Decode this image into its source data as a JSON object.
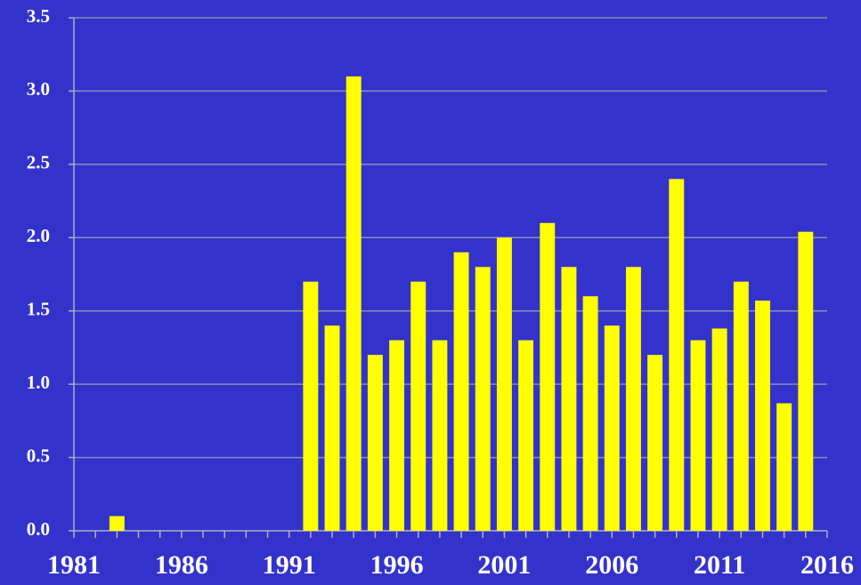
{
  "chart_data": {
    "type": "bar",
    "x": [
      1983,
      1992,
      1993,
      1994,
      1995,
      1996,
      1997,
      1998,
      1999,
      2000,
      2001,
      2002,
      2003,
      2004,
      2005,
      2006,
      2007,
      2008,
      2009,
      2010,
      2011,
      2012,
      2013,
      2014,
      2015
    ],
    "values": [
      0.1,
      1.7,
      1.4,
      3.1,
      1.2,
      1.3,
      1.7,
      1.3,
      1.9,
      1.8,
      2.0,
      1.3,
      2.1,
      1.8,
      1.6,
      1.4,
      1.8,
      1.2,
      2.4,
      1.3,
      1.38,
      1.7,
      1.57,
      0.87,
      2.04
    ],
    "color": "#ffff00",
    "xlim": [
      1981,
      2016
    ],
    "xticks": [
      1981,
      1986,
      1991,
      1996,
      2001,
      2006,
      2011,
      2016
    ],
    "xminorticks": [
      1982,
      1983,
      1984,
      1985,
      1987,
      1988,
      1989,
      1990,
      1992,
      1993,
      1994,
      1995,
      1997,
      1998,
      1999,
      2000,
      2002,
      2003,
      2004,
      2005,
      2007,
      2008,
      2009,
      2010,
      2012,
      2013,
      2014,
      2015
    ],
    "ylim": [
      0,
      3.5
    ],
    "yticks": [
      {
        "value": 0,
        "label": "0.0"
      },
      0.5,
      {
        "value": 1,
        "label": "1.0"
      },
      1.5,
      {
        "value": 2,
        "label": "2.0"
      },
      2.5,
      {
        "value": 3,
        "label": "3.0"
      },
      3.5
    ],
    "grid": true
  }
}
